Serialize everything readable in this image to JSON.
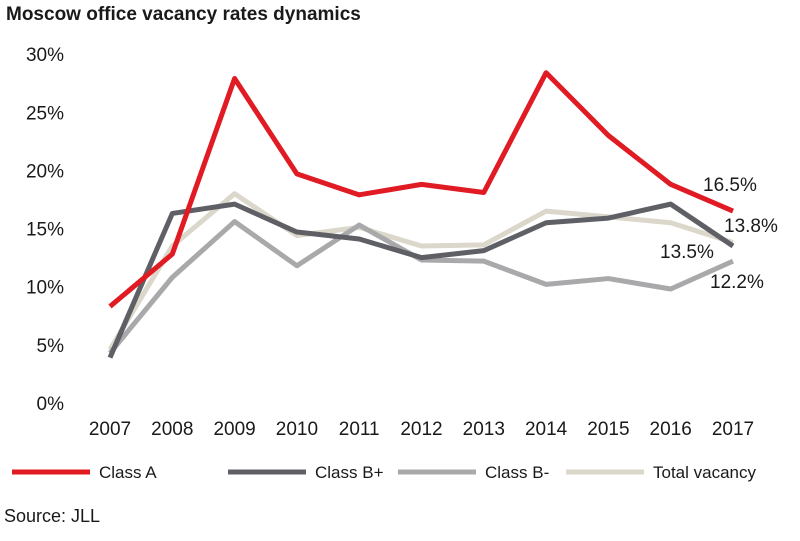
{
  "chart_data": {
    "type": "line",
    "title": "Moscow office vacancy rates dynamics",
    "source": "Source: JLL",
    "xlabel": "",
    "ylabel": "",
    "categories": [
      "2007",
      "2008",
      "2009",
      "2010",
      "2011",
      "2012",
      "2013",
      "2014",
      "2015",
      "2016",
      "2017"
    ],
    "ylim": [
      0,
      30
    ],
    "yticks": [
      "0%",
      "5%",
      "10%",
      "15%",
      "20%",
      "25%",
      "30%"
    ],
    "grid": false,
    "legend_position": "bottom",
    "series": [
      {
        "name": "Class A",
        "color": "#e01b24",
        "values": [
          8.3,
          12.8,
          27.9,
          19.7,
          17.9,
          18.8,
          18.1,
          28.4,
          23.0,
          18.8,
          16.5
        ]
      },
      {
        "name": "Class B+",
        "color": "#5f6065",
        "values": [
          3.9,
          16.3,
          17.1,
          14.7,
          14.1,
          12.5,
          13.1,
          15.5,
          15.9,
          17.1,
          13.5
        ]
      },
      {
        "name": "Class B-",
        "color": "#a9a9ab",
        "values": [
          4.3,
          10.8,
          15.6,
          11.8,
          15.3,
          12.3,
          12.2,
          10.2,
          10.7,
          9.8,
          12.2
        ]
      },
      {
        "name": "Total vacancy",
        "color": "#dbd7cb",
        "values": [
          4.6,
          13.5,
          18.0,
          14.4,
          15.1,
          13.5,
          13.6,
          16.5,
          16.0,
          15.5,
          13.8
        ]
      }
    ],
    "data_labels": [
      "16.5%",
      "13.8%",
      "13.5%",
      "12.2%"
    ]
  }
}
